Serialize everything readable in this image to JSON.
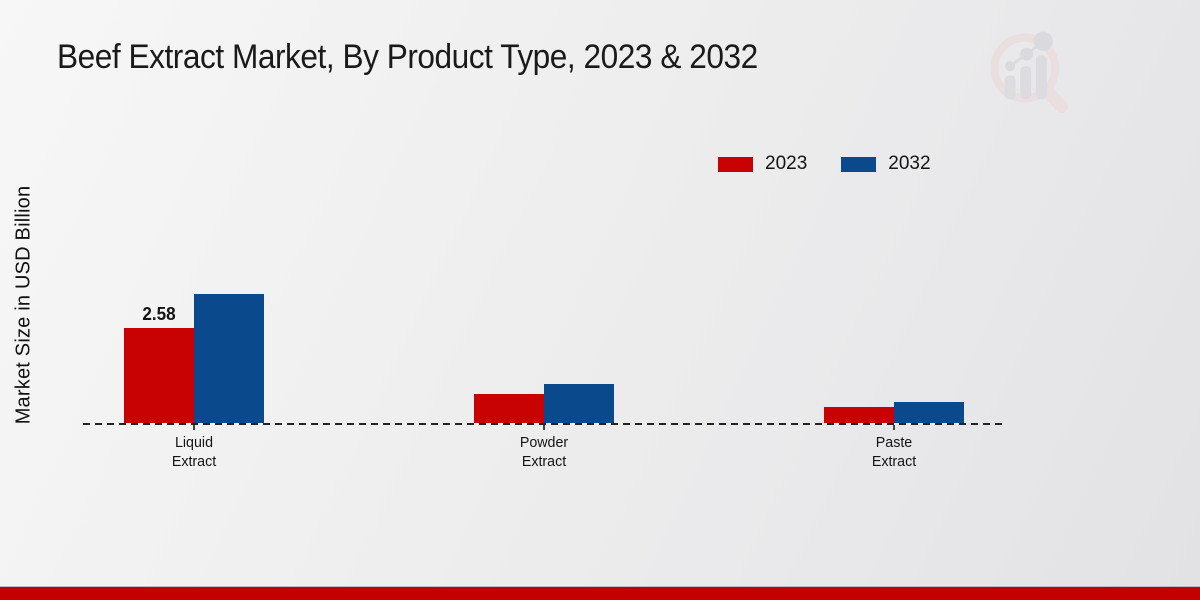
{
  "title": "Beef Extract Market, By Product Type, 2023 & 2032",
  "y_axis_label": "Market Size in USD Billion",
  "legend": {
    "position": "top-right",
    "items": [
      {
        "label": "2023",
        "color": "#c80202"
      },
      {
        "label": "2032",
        "color": "#0a4a8c"
      }
    ]
  },
  "chart_data": {
    "type": "bar",
    "title": "Beef Extract Market, By Product Type, 2023 & 2032",
    "xlabel": "",
    "ylabel": "Market Size in USD Billion",
    "categories": [
      "Liquid Extract",
      "Powder Extract",
      "Paste Extract"
    ],
    "category_lines": [
      [
        "Liquid",
        "Extract"
      ],
      [
        "Powder",
        "Extract"
      ],
      [
        "Paste",
        "Extract"
      ]
    ],
    "series": [
      {
        "name": "2023",
        "color": "#c80202",
        "values": [
          2.58,
          0.79,
          0.43
        ]
      },
      {
        "name": "2032",
        "color": "#0a4a8c",
        "values": [
          3.5,
          1.06,
          0.57
        ]
      }
    ],
    "annotations": [
      {
        "series": "2023",
        "category": "Liquid Extract",
        "text": "2.58"
      }
    ],
    "ylim": [
      0,
      3.9
    ],
    "gridlines": false,
    "y_ticks_visible": false,
    "baseline_style": "dashed",
    "legend_position": "top-right"
  },
  "watermark": {
    "name": "market-research-chart-logo"
  },
  "footer": {
    "bar_color": "#c30101"
  },
  "colors": {
    "series_2023": "#c80202",
    "series_2032": "#0a4a8c",
    "background_start": "#f7f7f7",
    "background_end": "#e2e2e4",
    "footer_bar": "#c30101",
    "text": "#1a1a1a"
  }
}
